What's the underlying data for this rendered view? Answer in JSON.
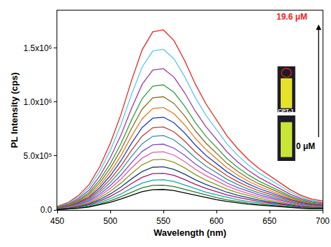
{
  "chart_data": {
    "type": "line",
    "xlabel": "Wavelength (nm)",
    "ylabel": "PL Intensity (cps)",
    "xlim": [
      450,
      700
    ],
    "xticks": [
      450,
      500,
      550,
      600,
      650,
      700
    ],
    "ylim": [
      0,
      1850000
    ],
    "yticks": [
      {
        "value": 0,
        "label": "0.0"
      },
      {
        "value": 500000,
        "label": "5.0x10⁵"
      },
      {
        "value": 1000000,
        "label": "1.0x10⁶"
      },
      {
        "value": 1500000,
        "label": "1.5x10⁶"
      }
    ],
    "grid": false,
    "x": [
      450,
      460,
      470,
      480,
      490,
      500,
      510,
      520,
      530,
      540,
      550,
      560,
      570,
      580,
      590,
      600,
      610,
      620,
      630,
      640,
      650,
      660,
      670,
      680,
      690,
      700
    ],
    "series": [
      {
        "color": "#e8251e",
        "values": [
          33000,
          67000,
          134000,
          234000,
          401000,
          618000,
          885000,
          1202000,
          1486000,
          1653000,
          1670000,
          1570000,
          1386000,
          1169000,
          985000,
          835000,
          685000,
          568000,
          468000,
          384000,
          317000,
          251000,
          184000,
          134000,
          100000,
          84000
        ]
      },
      {
        "color": "#5bc8e8",
        "values": [
          30000,
          60000,
          119000,
          209000,
          358000,
          551000,
          790000,
          1073000,
          1326000,
          1475000,
          1490000,
          1401000,
          1237000,
          1043000,
          879000,
          745000,
          611000,
          507000,
          417000,
          343000,
          283000,
          224000,
          164000,
          119000,
          89000,
          75000
        ]
      },
      {
        "color": "#a3389c",
        "values": [
          26000,
          52000,
          105000,
          183000,
          314000,
          485000,
          694000,
          943000,
          1166000,
          1297000,
          1310000,
          1231000,
          1087000,
          917000,
          773000,
          655000,
          537000,
          445000,
          367000,
          301000,
          249000,
          197000,
          144000,
          105000,
          79000,
          66000
        ]
      },
      {
        "color": "#2ea043",
        "values": [
          23000,
          46000,
          93000,
          162000,
          278000,
          429000,
          615000,
          835000,
          1032000,
          1148000,
          1160000,
          1090000,
          963000,
          812000,
          684000,
          580000,
          476000,
          394000,
          325000,
          267000,
          220000,
          174000,
          128000,
          93000,
          70000,
          58000
        ]
      },
      {
        "color": "#8c6d1f",
        "values": [
          21000,
          42000,
          84000,
          147000,
          252000,
          389000,
          557000,
          756000,
          935000,
          1040000,
          1050000,
          987000,
          872000,
          735000,
          620000,
          525000,
          431000,
          357000,
          294000,
          242000,
          200000,
          158000,
          116000,
          84000,
          63000,
          53000
        ]
      },
      {
        "color": "#e07b24",
        "values": [
          19000,
          38000,
          76000,
          133000,
          228000,
          352000,
          504000,
          684000,
          846000,
          941000,
          950000,
          893000,
          789000,
          665000,
          561000,
          475000,
          390000,
          323000,
          266000,
          219000,
          181000,
          143000,
          105000,
          76000,
          57000,
          48000
        ]
      },
      {
        "color": "#1f3fbf",
        "values": [
          17000,
          34000,
          69000,
          120000,
          206000,
          318000,
          456000,
          619000,
          765000,
          851000,
          860000,
          808000,
          714000,
          602000,
          507000,
          430000,
          353000,
          292000,
          241000,
          198000,
          163000,
          129000,
          95000,
          69000,
          52000,
          43000
        ]
      },
      {
        "color": "#c0392b",
        "values": [
          15000,
          31000,
          62000,
          108000,
          185000,
          285000,
          408000,
          554000,
          685000,
          762000,
          770000,
          724000,
          639000,
          539000,
          454000,
          385000,
          316000,
          262000,
          216000,
          177000,
          146000,
          116000,
          85000,
          62000,
          46000,
          39000
        ]
      },
      {
        "color": "#3a8f8f",
        "values": [
          14000,
          28000,
          55000,
          97000,
          166000,
          255000,
          366000,
          497000,
          614000,
          683000,
          690000,
          649000,
          573000,
          483000,
          407000,
          345000,
          283000,
          235000,
          193000,
          159000,
          131000,
          104000,
          76000,
          55000,
          41000,
          35000
        ]
      },
      {
        "color": "#7a4fd6",
        "values": [
          12000,
          24000,
          49000,
          85000,
          146000,
          226000,
          323000,
          439000,
          543000,
          604000,
          610000,
          573000,
          506000,
          427000,
          360000,
          305000,
          250000,
          207000,
          171000,
          140000,
          116000,
          92000,
          67000,
          49000,
          37000,
          31000
        ]
      },
      {
        "color": "#e05fa5",
        "values": [
          11000,
          22000,
          43000,
          76000,
          130000,
          200000,
          286000,
          389000,
          481000,
          535000,
          540000,
          508000,
          448000,
          378000,
          319000,
          270000,
          221000,
          184000,
          151000,
          124000,
          103000,
          81000,
          59000,
          43000,
          32000,
          27000
        ]
      },
      {
        "color": "#8a9a1b",
        "values": [
          9000,
          19000,
          38000,
          66000,
          113000,
          174000,
          249000,
          338000,
          418000,
          465000,
          470000,
          442000,
          390000,
          329000,
          277000,
          235000,
          193000,
          160000,
          132000,
          108000,
          89000,
          71000,
          52000,
          38000,
          28000,
          24000
        ]
      },
      {
        "color": "#16407a",
        "values": [
          8000,
          16000,
          32000,
          56000,
          96000,
          148000,
          212000,
          288000,
          356000,
          396000,
          400000,
          376000,
          332000,
          280000,
          236000,
          200000,
          164000,
          136000,
          112000,
          92000,
          76000,
          60000,
          44000,
          32000,
          24000,
          20000
        ]
      },
      {
        "color": "#9b1b6e",
        "values": [
          7000,
          14000,
          27000,
          48000,
          82000,
          126000,
          180000,
          245000,
          303000,
          337000,
          340000,
          320000,
          282000,
          238000,
          201000,
          170000,
          139000,
          116000,
          95000,
          78000,
          65000,
          51000,
          37000,
          27000,
          20000,
          17000
        ]
      },
      {
        "color": "#1aa3a3",
        "values": [
          6000,
          11000,
          22000,
          39000,
          67000,
          104000,
          148000,
          202000,
          249000,
          277000,
          280000,
          263000,
          232000,
          196000,
          165000,
          140000,
          115000,
          95000,
          78000,
          64000,
          53000,
          42000,
          31000,
          22000,
          17000,
          14000
        ]
      },
      {
        "color": "#2a7a2a",
        "values": [
          5000,
          9000,
          18000,
          32000,
          55000,
          85000,
          122000,
          166000,
          205000,
          228000,
          230000,
          216000,
          191000,
          161000,
          136000,
          115000,
          94000,
          78000,
          64000,
          53000,
          44000,
          35000,
          25000,
          18000,
          14000,
          12000
        ]
      },
      {
        "color": "#000000",
        "values": [
          4000,
          8000,
          15000,
          27000,
          46000,
          70000,
          101000,
          137000,
          169000,
          188000,
          190000,
          179000,
          158000,
          133000,
          112000,
          95000,
          78000,
          65000,
          53000,
          44000,
          36000,
          29000,
          21000,
          15000,
          11000,
          10000
        ]
      }
    ],
    "annotations": [
      {
        "text": "19.6 μM",
        "color": "#e8251e"
      },
      {
        "text": "0 μM",
        "color": "#000000"
      },
      {
        "text": "CPT-1",
        "color": "#ffffff"
      }
    ]
  }
}
